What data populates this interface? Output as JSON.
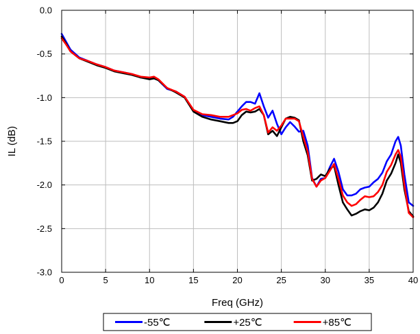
{
  "chart_data": {
    "type": "line",
    "xlabel": "Freq (GHz)",
    "ylabel": "IL (dB)",
    "xlim": [
      0,
      40
    ],
    "ylim": [
      -3.0,
      0.0
    ],
    "xticks": [
      0,
      5,
      10,
      15,
      20,
      25,
      30,
      35,
      40
    ],
    "xtick_labels": [
      "0",
      "5",
      "10",
      "15",
      "20",
      "25",
      "30",
      "35",
      "40"
    ],
    "yticks": [
      0.0,
      -0.5,
      -1.0,
      -1.5,
      -2.0,
      -2.5,
      -3.0
    ],
    "ytick_labels": [
      "0.0",
      "-0.5",
      "-1.0",
      "-1.5",
      "-2.0",
      "-2.5",
      "-3.0"
    ],
    "grid": true,
    "legend_position": "bottom",
    "series": [
      {
        "name": "-55℃",
        "color": "#0000ff",
        "x": [
          0,
          0.5,
          1,
          2,
          3,
          4,
          5,
          6,
          7,
          8,
          9,
          10,
          10.5,
          11,
          12,
          13,
          14,
          15,
          16,
          17,
          18,
          19,
          19.5,
          20,
          20.5,
          21,
          21.5,
          22,
          22.5,
          23,
          23.5,
          24,
          24.5,
          25,
          25.5,
          26,
          26.5,
          27,
          27.5,
          28,
          28.5,
          29,
          29.5,
          30,
          30.5,
          31,
          31.5,
          32,
          32.5,
          33,
          33.5,
          34,
          34.5,
          35,
          35.5,
          36,
          36.5,
          37,
          37.5,
          38,
          38.3,
          38.6,
          39,
          39.5,
          40
        ],
        "y": [
          -0.27,
          -0.36,
          -0.45,
          -0.54,
          -0.58,
          -0.62,
          -0.65,
          -0.69,
          -0.71,
          -0.73,
          -0.77,
          -0.78,
          -0.77,
          -0.8,
          -0.9,
          -0.93,
          -0.99,
          -1.15,
          -1.2,
          -1.22,
          -1.24,
          -1.25,
          -1.22,
          -1.16,
          -1.1,
          -1.05,
          -1.05,
          -1.07,
          -0.95,
          -1.1,
          -1.23,
          -1.15,
          -1.3,
          -1.42,
          -1.34,
          -1.28,
          -1.33,
          -1.39,
          -1.38,
          -1.55,
          -1.92,
          -2.02,
          -1.93,
          -1.92,
          -1.8,
          -1.7,
          -1.85,
          -2.05,
          -2.12,
          -2.12,
          -2.1,
          -2.05,
          -2.03,
          -2.02,
          -1.97,
          -1.93,
          -1.86,
          -1.73,
          -1.65,
          -1.5,
          -1.45,
          -1.55,
          -1.88,
          -2.2,
          -2.24
        ]
      },
      {
        "name": "+25℃",
        "color": "#000000",
        "x": [
          0,
          0.5,
          1,
          2,
          3,
          4,
          5,
          6,
          7,
          8,
          9,
          10,
          10.5,
          11,
          12,
          13,
          14,
          15,
          16,
          17,
          18,
          19,
          19.5,
          20,
          20.5,
          21,
          21.5,
          22,
          22.5,
          23,
          23.5,
          24,
          24.5,
          25,
          25.5,
          26,
          26.5,
          27,
          27.5,
          28,
          28.5,
          29,
          29.5,
          30,
          30.5,
          31,
          31.5,
          32,
          32.5,
          33,
          33.5,
          34,
          34.5,
          35,
          35.5,
          36,
          36.5,
          37,
          37.5,
          38,
          38.3,
          38.6,
          39,
          39.5,
          40
        ],
        "y": [
          -0.3,
          -0.38,
          -0.47,
          -0.55,
          -0.59,
          -0.63,
          -0.66,
          -0.7,
          -0.72,
          -0.74,
          -0.77,
          -0.79,
          -0.78,
          -0.8,
          -0.89,
          -0.94,
          -1.0,
          -1.16,
          -1.22,
          -1.25,
          -1.27,
          -1.29,
          -1.29,
          -1.27,
          -1.2,
          -1.16,
          -1.17,
          -1.16,
          -1.13,
          -1.2,
          -1.42,
          -1.38,
          -1.44,
          -1.34,
          -1.24,
          -1.22,
          -1.23,
          -1.26,
          -1.5,
          -1.66,
          -1.95,
          -1.93,
          -1.88,
          -1.9,
          -1.82,
          -1.78,
          -2.0,
          -2.2,
          -2.28,
          -2.35,
          -2.33,
          -2.3,
          -2.28,
          -2.29,
          -2.26,
          -2.2,
          -2.1,
          -1.95,
          -1.87,
          -1.75,
          -1.65,
          -1.75,
          -2.05,
          -2.3,
          -2.36
        ]
      },
      {
        "name": "+85℃",
        "color": "#ff0000",
        "x": [
          0,
          0.5,
          1,
          2,
          3,
          4,
          5,
          6,
          7,
          8,
          9,
          10,
          10.5,
          11,
          12,
          13,
          14,
          15,
          16,
          17,
          18,
          19,
          19.5,
          20,
          20.5,
          21,
          21.5,
          22,
          22.5,
          23,
          23.5,
          24,
          24.5,
          25,
          25.5,
          26,
          26.5,
          27,
          27.5,
          28,
          28.5,
          29,
          29.5,
          30,
          30.5,
          31,
          31.5,
          32,
          32.5,
          33,
          33.5,
          34,
          34.5,
          35,
          35.5,
          36,
          36.5,
          37,
          37.5,
          38,
          38.3,
          38.6,
          39,
          39.5,
          40
        ],
        "y": [
          -0.32,
          -0.39,
          -0.47,
          -0.55,
          -0.58,
          -0.62,
          -0.65,
          -0.69,
          -0.71,
          -0.73,
          -0.76,
          -0.77,
          -0.76,
          -0.79,
          -0.89,
          -0.93,
          -0.99,
          -1.14,
          -1.19,
          -1.2,
          -1.22,
          -1.22,
          -1.2,
          -1.18,
          -1.14,
          -1.13,
          -1.15,
          -1.12,
          -1.1,
          -1.2,
          -1.4,
          -1.34,
          -1.38,
          -1.32,
          -1.24,
          -1.24,
          -1.24,
          -1.27,
          -1.45,
          -1.62,
          -1.93,
          -2.02,
          -1.95,
          -1.92,
          -1.84,
          -1.76,
          -1.93,
          -2.12,
          -2.2,
          -2.24,
          -2.22,
          -2.17,
          -2.13,
          -2.14,
          -2.13,
          -2.08,
          -2.0,
          -1.85,
          -1.77,
          -1.65,
          -1.6,
          -1.68,
          -2.0,
          -2.32,
          -2.37
        ]
      }
    ]
  }
}
